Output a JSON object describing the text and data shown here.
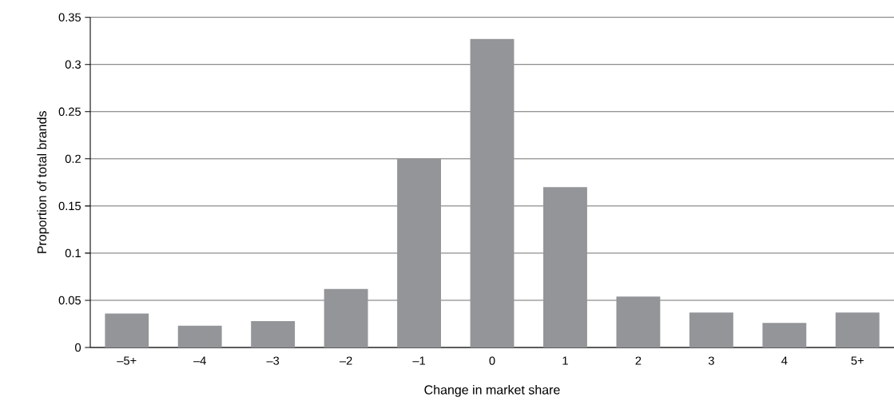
{
  "chart_data": {
    "type": "bar",
    "xlabel": "Change in market share",
    "ylabel": "Proportion of total brands",
    "categories": [
      "–5+",
      "–4",
      "–3",
      "–2",
      "–1",
      "0",
      "1",
      "2",
      "3",
      "4",
      "5+"
    ],
    "values": [
      0.036,
      0.023,
      0.028,
      0.062,
      0.2,
      0.327,
      0.17,
      0.054,
      0.037,
      0.026,
      0.037
    ],
    "color": "#939598",
    "ylim": [
      0,
      0.35
    ],
    "yticks": [
      0,
      0.05,
      0.1,
      0.15,
      0.2,
      0.25,
      0.3,
      0.35
    ],
    "grid": "y"
  }
}
